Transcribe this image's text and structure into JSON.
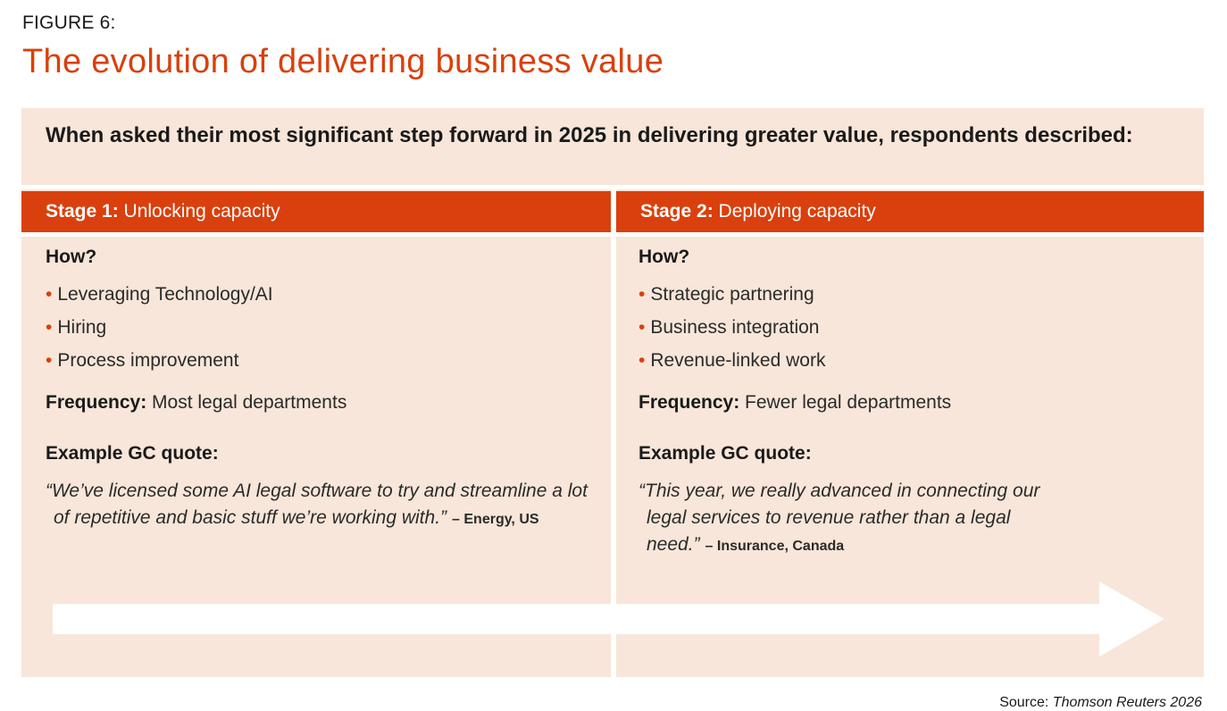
{
  "figure": {
    "label": "FIGURE 6:",
    "title": "The evolution of delivering business value"
  },
  "intro": {
    "text": "When asked their most significant step forward in 2025 in delivering greater value, respondents described:"
  },
  "stages": [
    {
      "prefix": "Stage 1:",
      "name": "Unlocking capacity",
      "how_label": "How?",
      "bullets": [
        "Leveraging Technology/AI",
        "Hiring",
        "Process improvement"
      ],
      "frequency_label": "Frequency:",
      "frequency_value": "Most legal departments",
      "quote_label": "Example GC quote:",
      "quote": "“We’ve licensed some AI legal software to try and streamline a lot of repetitive and basic stuff we’re working with.”",
      "attribution": "– Energy, US"
    },
    {
      "prefix": "Stage 2:",
      "name": "Deploying capacity",
      "how_label": "How?",
      "bullets": [
        "Strategic partnering",
        "Business integration",
        "Revenue-linked work"
      ],
      "frequency_label": "Frequency:",
      "frequency_value": "Fewer legal departments",
      "quote_label": "Example GC quote:",
      "quote": "“This year, we really advanced in connecting our legal services to revenue rather than a legal need.”",
      "attribution": "– Insurance, Canada"
    }
  ],
  "source": {
    "label": "Source:",
    "value": "Thomson Reuters 2026"
  },
  "colors": {
    "accent": "#d9400d",
    "panel": "#f7e6d9",
    "text": "#1a1a1a"
  },
  "icons": {
    "bullet": "bullet-dot-icon",
    "arrow": "progression-arrow-icon"
  }
}
